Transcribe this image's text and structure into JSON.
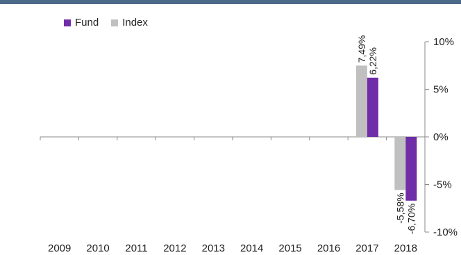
{
  "colors": {
    "fund": "#6f2da8",
    "index": "#c0c0c0",
    "axis": "#888888",
    "band": "#4a6a87"
  },
  "chart_data": {
    "type": "bar",
    "categories": [
      "2009",
      "2010",
      "2011",
      "2012",
      "2013",
      "2014",
      "2015",
      "2016",
      "2017",
      "2018"
    ],
    "series": [
      {
        "name": "Fund",
        "values": [
          null,
          null,
          null,
          null,
          null,
          null,
          null,
          null,
          6.22,
          -6.7
        ],
        "labels": [
          null,
          null,
          null,
          null,
          null,
          null,
          null,
          null,
          "6,22%",
          "-6,70%"
        ]
      },
      {
        "name": "Index",
        "values": [
          null,
          null,
          null,
          null,
          null,
          null,
          null,
          null,
          7.49,
          -5.58
        ],
        "labels": [
          null,
          null,
          null,
          null,
          null,
          null,
          null,
          null,
          "7,49%",
          "-5,58%"
        ]
      }
    ],
    "ylim": [
      -10,
      10
    ],
    "yticks": [
      10,
      5,
      0,
      -5,
      -10
    ],
    "ytick_labels": [
      "10%",
      "5%",
      "0%",
      "-5%",
      "-10%"
    ],
    "legend": "top-left",
    "grid": false,
    "y_axis_side": "right"
  }
}
